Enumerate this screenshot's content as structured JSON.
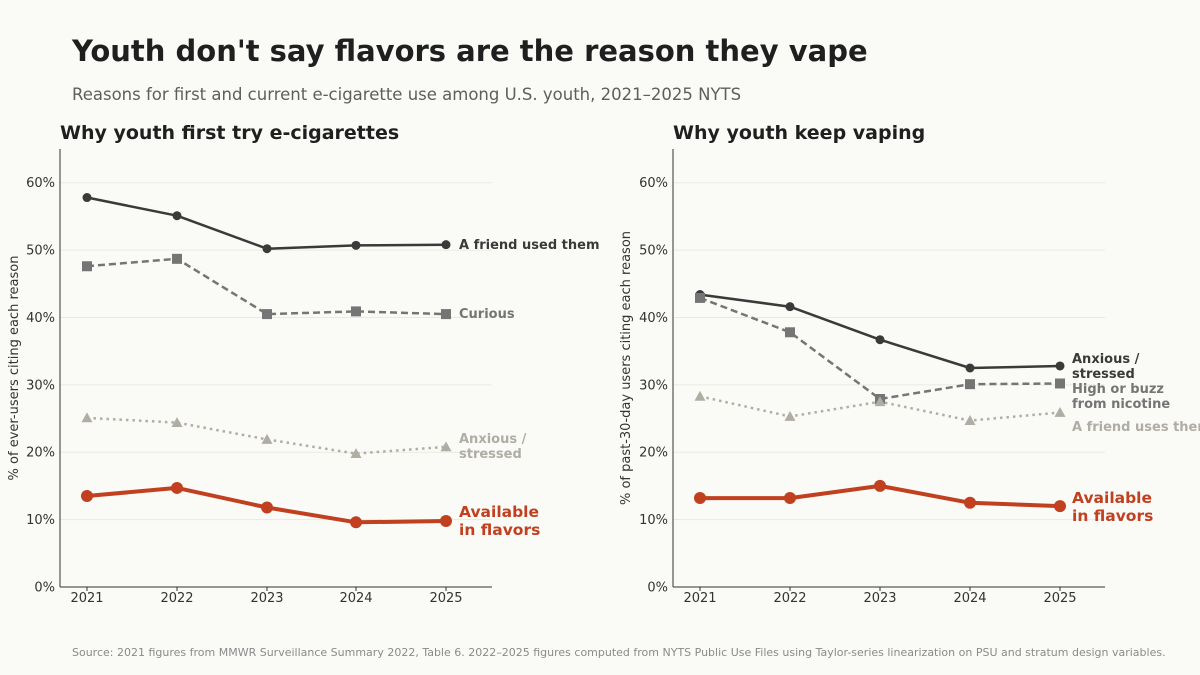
{
  "header": {
    "title": "Youth don't say flavors are the reason they vape",
    "subtitle": "Reasons for first and current e-cigarette use among U.S. youth, 2021–2025 NYTS"
  },
  "footer": {
    "source": "Source: 2021 figures from MMWR Surveillance Summary 2022, Table 6.  2022–2025 figures computed from NYTS Public Use Files using Taylor-series linearization on PSU and stratum design variables."
  },
  "chart_data": [
    {
      "type": "line",
      "title": "Why youth first try e-cigarettes",
      "xlabel": "",
      "ylabel": "% of ever-users citing each reason",
      "x": [
        "2021",
        "2022",
        "2023",
        "2024",
        "2025"
      ],
      "ylim": [
        0,
        65
      ],
      "yticks": [
        "0%",
        "10%",
        "20%",
        "30%",
        "40%",
        "50%",
        "60%"
      ],
      "grid": true,
      "series": [
        {
          "name": "A friend used them",
          "values": [
            57.8,
            55.1,
            50.2,
            50.7,
            50.8
          ],
          "color": "#3a3a3a",
          "style": "solid",
          "marker": "circle"
        },
        {
          "name": "Curious",
          "values": [
            47.6,
            48.7,
            40.5,
            40.9,
            40.5
          ],
          "color": "#757575",
          "style": "dashed",
          "marker": "square"
        },
        {
          "name": "Anxious / stressed",
          "values": [
            25.1,
            24.4,
            21.9,
            19.8,
            20.8
          ],
          "color": "#b0ada4",
          "style": "dotted",
          "marker": "triangle"
        },
        {
          "name": "Available in flavors",
          "values": [
            13.5,
            14.7,
            11.8,
            9.6,
            9.8
          ],
          "color": "#c0401f",
          "style": "solid",
          "marker": "circle"
        }
      ]
    },
    {
      "type": "line",
      "title": "Why youth keep vaping",
      "xlabel": "",
      "ylabel": "% of past-30-day users citing each reason",
      "x": [
        "2021",
        "2022",
        "2023",
        "2024",
        "2025"
      ],
      "ylim": [
        0,
        65
      ],
      "yticks": [
        "0%",
        "10%",
        "20%",
        "30%",
        "40%",
        "50%",
        "60%"
      ],
      "grid": true,
      "series": [
        {
          "name": "Anxious / stressed",
          "values": [
            43.4,
            41.6,
            36.7,
            32.5,
            32.8
          ],
          "color": "#3a3a3a",
          "style": "solid",
          "marker": "circle"
        },
        {
          "name": "High or buzz from nicotine",
          "values": [
            42.9,
            37.8,
            27.9,
            30.1,
            30.2
          ],
          "color": "#757575",
          "style": "dashed",
          "marker": "square"
        },
        {
          "name": "A friend uses them",
          "values": [
            28.3,
            25.3,
            27.5,
            24.7,
            25.9
          ],
          "color": "#b0ada4",
          "style": "dotted",
          "marker": "triangle"
        },
        {
          "name": "Available in flavors",
          "values": [
            13.2,
            13.2,
            15.0,
            12.5,
            12.0
          ],
          "color": "#c0401f",
          "style": "solid",
          "marker": "circle"
        }
      ]
    }
  ]
}
